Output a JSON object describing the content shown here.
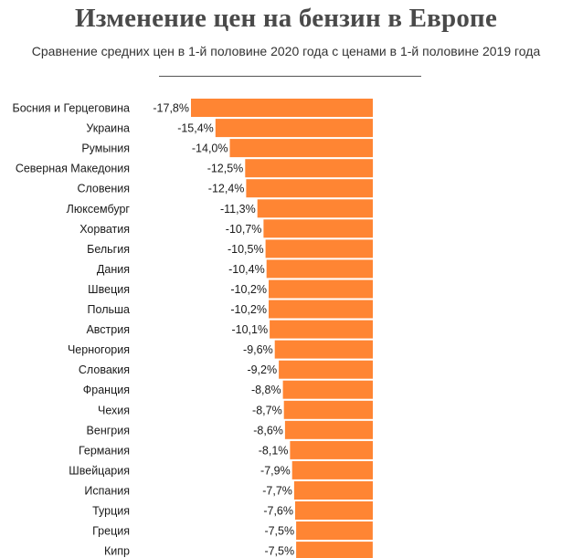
{
  "title": "Изменение цен на бензин в Европе",
  "subtitle": "Сравнение средних цен в 1-й половине 2020 года с ценами в 1-й половине 2019 года",
  "bar_color": "#ff8533",
  "chart_data": {
    "type": "bar",
    "orientation": "horizontal",
    "title": "Изменение цен на бензин в Европе",
    "subtitle": "Сравнение средних цен в 1-й половине 2020 года с ценами в 1-й половине 2019 года",
    "categories": [
      "Босния и Герцеговина",
      "Украина",
      "Румыния",
      "Северная Македония",
      "Словения",
      "Люксембург",
      "Хорватия",
      "Бельгия",
      "Дания",
      "Швеция",
      "Польша",
      "Австрия",
      "Черногория",
      "Словакия",
      "Франция",
      "Чехия",
      "Венгрия",
      "Германия",
      "Швейцария",
      "Испания",
      "Турция",
      "Греция",
      "Кипр"
    ],
    "values": [
      -17.8,
      -15.4,
      -14.0,
      -12.5,
      -12.4,
      -11.3,
      -10.7,
      -10.5,
      -10.4,
      -10.2,
      -10.2,
      -10.1,
      -9.6,
      -9.2,
      -8.8,
      -8.7,
      -8.6,
      -8.1,
      -7.9,
      -7.7,
      -7.6,
      -7.5,
      -7.5
    ],
    "value_labels": [
      "-17,8%",
      "-15,4%",
      "-14,0%",
      "-12,5%",
      "-12,4%",
      "-11,3%",
      "-10,7%",
      "-10,5%",
      "-10,4%",
      "-10,2%",
      "-10,2%",
      "-10,1%",
      "-9,6%",
      "-9,2%",
      "-8,8%",
      "-8,7%",
      "-8,6%",
      "-8,1%",
      "-7,9%",
      "-7,7%",
      "-7,6%",
      "-7,5%",
      "-7,5%"
    ],
    "xlabel": "",
    "ylabel": "",
    "grid": false,
    "legend": "none"
  }
}
